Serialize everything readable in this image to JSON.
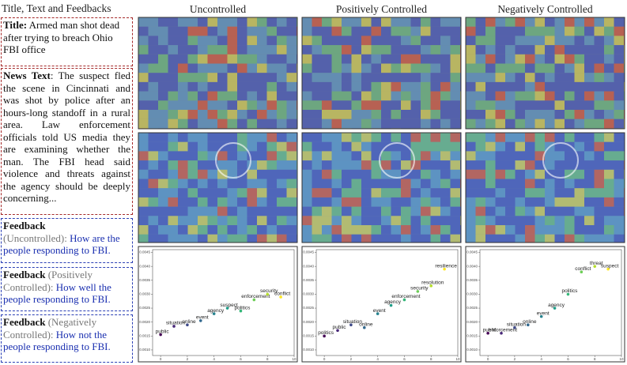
{
  "left": {
    "heading": "Title, Text and Feedbacks",
    "title_label": "Title:",
    "title_text": "Armed man shot dead after trying to breach Ohio FBI office",
    "news_label": "News Text",
    "news_text": ": The suspect fled the scene in Cincinnati and was shot by police after an hours-long standoff in a rural area. Law enforcement officials told US media they are examining whether the man. The FBI head said violence and threats against the agency should be deeply concerning...",
    "feedbacks": [
      {
        "label": "Feedback",
        "mode": "(Uncontrolled):",
        "text": "How are the people responding to FBI."
      },
      {
        "label": "Feedback",
        "mode": "(Positively Controlled):",
        "text": "How well the people responding to FBI."
      },
      {
        "label": "Feedback",
        "mode": "(Negatively Controlled):",
        "text": "How not the people responding to FBI."
      }
    ]
  },
  "panels": [
    {
      "title": "Uncontrolled",
      "scatter": {
        "words": [
          "public",
          "situation",
          "online",
          "event",
          "agency",
          "suspect",
          "politics",
          "enforcement",
          "security",
          "conflict"
        ],
        "x": [
          0,
          1,
          2,
          3,
          4,
          5,
          6,
          7,
          8,
          9
        ],
        "y": [
          0.00155,
          0.00185,
          0.0019,
          0.00205,
          0.0023,
          0.0025,
          0.0024,
          0.0028,
          0.003,
          0.0029
        ],
        "colors": [
          "#440154",
          "#482878",
          "#3e4989",
          "#31688e",
          "#26828e",
          "#1f9e89",
          "#35b779",
          "#6ece58",
          "#b5de2b",
          "#fde725"
        ]
      }
    },
    {
      "title": "Positively Controlled",
      "scatter": {
        "words": [
          "politics",
          "public",
          "situation",
          "online",
          "event",
          "agency",
          "enforcement",
          "security",
          "resolution",
          "resilience"
        ],
        "x": [
          0,
          1,
          2,
          3,
          4,
          5,
          6,
          7,
          8,
          9
        ],
        "y": [
          0.0015,
          0.0017,
          0.0019,
          0.0018,
          0.0023,
          0.0026,
          0.0028,
          0.0031,
          0.0033,
          0.0039
        ],
        "colors": [
          "#440154",
          "#482878",
          "#3e4989",
          "#31688e",
          "#26828e",
          "#1f9e89",
          "#35b779",
          "#6ece58",
          "#b5de2b",
          "#fde725"
        ]
      }
    },
    {
      "title": "Negatively Controlled",
      "scatter": {
        "words": [
          "public",
          "enforcement",
          "situation",
          "online",
          "event",
          "agency",
          "politics",
          "conflict",
          "threat",
          "suspect"
        ],
        "x": [
          0,
          1,
          2,
          3,
          4,
          5,
          6,
          7,
          8,
          9
        ],
        "y": [
          0.0016,
          0.0016,
          0.0018,
          0.0019,
          0.0022,
          0.0025,
          0.003,
          0.0038,
          0.004,
          0.0039
        ],
        "colors": [
          "#440154",
          "#482878",
          "#3e4989",
          "#31688e",
          "#26828e",
          "#1f9e89",
          "#35b779",
          "#6ece58",
          "#b5de2b",
          "#fde725"
        ]
      }
    }
  ],
  "scatter_axes": {
    "xlim": [
      -0.6,
      10
    ],
    "ylim": [
      0.0008,
      0.0046
    ],
    "xticks": [
      0,
      2,
      4,
      6,
      8,
      10
    ],
    "yticks": [
      {
        "value": 0.001,
        "label": "0.0010"
      },
      0.0015,
      {
        "value": 0.002,
        "label": "0.0020"
      },
      0.0025,
      {
        "value": 0.003,
        "label": "0.0030"
      },
      0.0035,
      {
        "value": 0.004,
        "label": "0.0040"
      },
      0.0045
    ]
  }
}
